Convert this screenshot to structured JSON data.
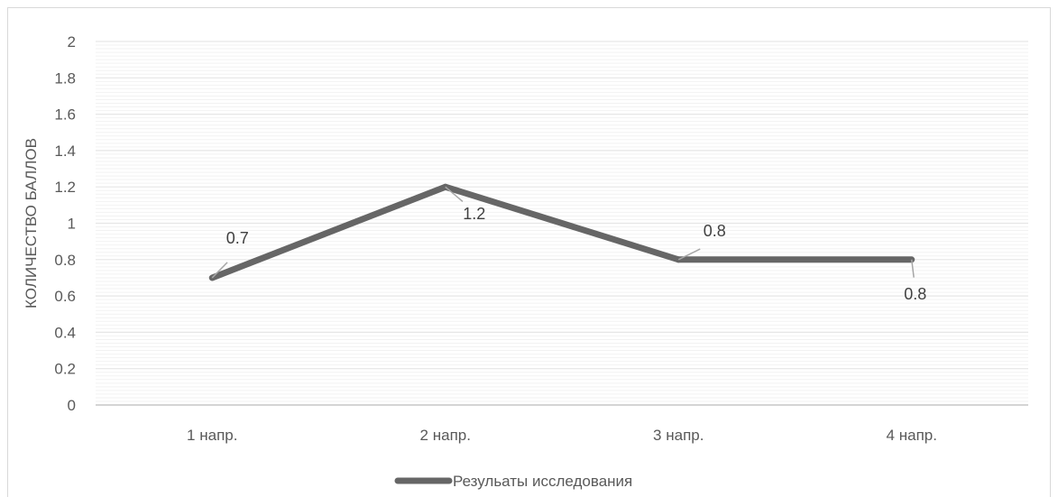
{
  "chart_data": {
    "type": "line",
    "title": "",
    "xlabel": "",
    "ylabel": "КОЛИЧЕСТВО БАЛЛОВ",
    "categories": [
      "1 напр.",
      "2 напр.",
      "3 напр.",
      "4 напр."
    ],
    "series": [
      {
        "name": "Резульаты исследования",
        "values": [
          0.7,
          1.2,
          0.8,
          0.8
        ],
        "color": "#666666"
      }
    ],
    "data_labels": [
      "0.7",
      "1.2",
      "0.8",
      "0.8"
    ],
    "yticks": [
      "0",
      "0.2",
      "0.4",
      "0.6",
      "0.8",
      "1",
      "1.2",
      "1.4",
      "1.6",
      "1.8",
      "2"
    ],
    "ylim": [
      0,
      2
    ],
    "grid": true,
    "legend_position": "bottom",
    "colors": {
      "gridline": "#e6e6e6",
      "axis": "#bfbfbf",
      "text": "#595959"
    }
  }
}
